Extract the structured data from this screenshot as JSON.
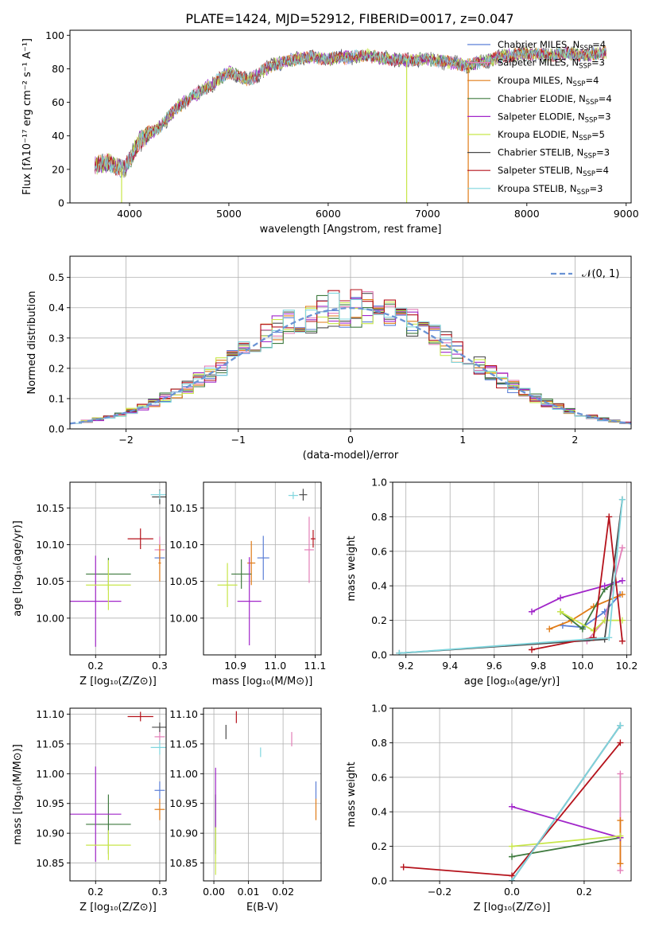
{
  "figure": {
    "title": "PLATE=1424, MJD=52912, FIBERID=0017, z=0.047"
  },
  "models": [
    {
      "name": "Chabrier MILES",
      "nssp": "4",
      "color": "#5b7fd6"
    },
    {
      "name": "Salpeter MILES",
      "nssp": "3",
      "color": "#e37fb8"
    },
    {
      "name": "Kroupa MILES",
      "nssp": "4",
      "color": "#e07b17"
    },
    {
      "name": "Chabrier ELODIE",
      "nssp": "4",
      "color": "#3f7a3f"
    },
    {
      "name": "Salpeter ELODIE",
      "nssp": "3",
      "color": "#a126c9"
    },
    {
      "name": "Kroupa ELODIE",
      "nssp": "5",
      "color": "#c8e64a"
    },
    {
      "name": "Chabrier STELIB",
      "nssp": "3",
      "color": "#4a4a4a"
    },
    {
      "name": "Salpeter STELIB",
      "nssp": "4",
      "color": "#b5121b"
    },
    {
      "name": "Kroupa STELIB",
      "nssp": "3",
      "color": "#7fd6de"
    }
  ],
  "chart_data": [
    {
      "id": "spectrum",
      "type": "line",
      "xlabel": "wavelength [Angstrom, rest frame]",
      "ylabel": "Flux [fλ10⁻¹⁷ erg cm⁻² s⁻¹ A⁻¹]",
      "xlim": [
        3400,
        9050
      ],
      "ylim": [
        0,
        103
      ],
      "xticks": [
        4000,
        5000,
        6000,
        7000,
        8000,
        9000
      ],
      "yticks": [
        0,
        20,
        40,
        60,
        80,
        100
      ],
      "grid": false,
      "legend": "right",
      "x": [
        3650,
        3800,
        3950,
        4100,
        4300,
        4500,
        4700,
        4860,
        5000,
        5200,
        5400,
        5600,
        5800,
        6000,
        6200,
        6400,
        6563,
        6800,
        7000,
        7200,
        7400,
        7600,
        7800,
        8000,
        8200,
        8400,
        8600,
        8800
      ],
      "y": [
        22,
        24,
        20,
        37,
        45,
        58,
        66,
        72,
        78,
        73,
        81,
        85,
        87,
        86,
        87,
        88,
        86,
        85,
        86,
        84,
        82,
        85,
        88,
        89,
        88,
        89,
        88,
        90
      ],
      "spikes": [
        {
          "x": 3920,
          "color": "#c8e64a"
        },
        {
          "x": 6790,
          "color": "#c8e64a"
        },
        {
          "x": 7410,
          "color": "#e07b17"
        }
      ]
    },
    {
      "id": "residuals",
      "type": "bar",
      "xlabel": "(data-model)/error",
      "ylabel": "Normed distribution",
      "xlim": [
        -2.5,
        2.5
      ],
      "ylim": [
        0,
        0.57
      ],
      "xticks": [
        -2,
        -1,
        0,
        1,
        2
      ],
      "yticks": [
        0.0,
        0.1,
        0.2,
        0.3,
        0.4,
        0.5
      ],
      "grid": true,
      "legend": "top-right",
      "legend_label": "𝒩(0, 1)",
      "gaussian_color": "#6a93d4"
    },
    {
      "id": "age-vs-z",
      "type": "scatter",
      "xlabel": "Z [log₁₀(Z/Z⊙)]",
      "ylabel": "age  [log₁₀(age/yr)]",
      "xlim": [
        0.16,
        0.31
      ],
      "ylim": [
        9.95,
        10.185
      ],
      "xticks": [
        0.2,
        0.3
      ],
      "yticks": [
        10.0,
        10.05,
        10.1,
        10.15
      ],
      "xticklabels": [
        "0.2",
        "0.3"
      ],
      "yticklabels": [
        "10.00",
        "10.05",
        "10.10",
        "10.15"
      ],
      "grid": true,
      "points": [
        {
          "m": 0,
          "x": 0.3,
          "y": 10.082,
          "xe": 0.008,
          "ye": 0.004
        },
        {
          "m": 1,
          "x": 0.3,
          "y": 10.093,
          "xe": 0.008,
          "ye": 0.018
        },
        {
          "m": 2,
          "x": 0.3,
          "y": 10.075,
          "xe": 0.002,
          "ye": 0.025
        },
        {
          "m": 3,
          "x": 0.22,
          "y": 10.06,
          "xe": 0.035,
          "ye": 0.022
        },
        {
          "m": 4,
          "x": 0.2,
          "y": 10.023,
          "xe": 0.04,
          "ye": 0.062
        },
        {
          "m": 5,
          "x": 0.22,
          "y": 10.045,
          "xe": 0.035,
          "ye": 0.034
        },
        {
          "m": 6,
          "x": 0.3,
          "y": 10.165,
          "xe": 0.012,
          "ye": 0.01
        },
        {
          "m": 7,
          "x": 0.27,
          "y": 10.108,
          "xe": 0.02,
          "ye": 0.014
        },
        {
          "m": 8,
          "x": 0.3,
          "y": 10.168,
          "xe": 0.014,
          "ye": 0.006
        }
      ]
    },
    {
      "id": "age-vs-mass",
      "type": "scatter",
      "xlabel": "mass [log₁₀(M/M⊙)]",
      "ylabel": "",
      "xlim": [
        10.82,
        11.115
      ],
      "ylim": [
        9.95,
        10.185
      ],
      "xticks": [
        10.9,
        11.0,
        11.1
      ],
      "yticks": [
        10.0,
        10.05,
        10.1,
        10.15
      ],
      "xticklabels": [
        "10.9",
        "11.0",
        "11.1"
      ],
      "yticklabels": [
        "10.00",
        "10.05",
        "10.10",
        "10.15"
      ],
      "grid": true,
      "points": [
        {
          "m": 0,
          "x": 10.97,
          "y": 10.082,
          "xe": 0.015,
          "ye": 0.03
        },
        {
          "m": 1,
          "x": 11.085,
          "y": 10.093,
          "xe": 0.012,
          "ye": 0.045
        },
        {
          "m": 2,
          "x": 10.94,
          "y": 10.075,
          "xe": 0.01,
          "ye": 0.03
        },
        {
          "m": 3,
          "x": 10.915,
          "y": 10.06,
          "xe": 0.025,
          "ye": 0.02
        },
        {
          "m": 4,
          "x": 10.935,
          "y": 10.023,
          "xe": 0.03,
          "ye": 0.06
        },
        {
          "m": 5,
          "x": 10.88,
          "y": 10.045,
          "xe": 0.025,
          "ye": 0.03
        },
        {
          "m": 6,
          "x": 11.07,
          "y": 10.168,
          "xe": 0.01,
          "ye": 0.008
        },
        {
          "m": 7,
          "x": 11.095,
          "y": 10.108,
          "xe": 0.006,
          "ye": 0.012
        },
        {
          "m": 8,
          "x": 11.045,
          "y": 10.167,
          "xe": 0.012,
          "ye": 0.005
        }
      ]
    },
    {
      "id": "massweight-vs-age",
      "type": "line",
      "xlabel": "age  [log₁₀(age/yr)]",
      "ylabel": "mass weight",
      "xlim": [
        9.14,
        10.22
      ],
      "ylim": [
        0,
        1
      ],
      "xticks": [
        9.2,
        9.4,
        9.6,
        9.8,
        10.0,
        10.2
      ],
      "yticks": [
        0,
        0.2,
        0.4,
        0.6,
        0.8,
        1.0
      ],
      "xticklabels": [
        "9.2",
        "9.4",
        "9.6",
        "9.8",
        "10.0",
        "10.2"
      ],
      "yticklabels": [
        "0.0",
        "0.2",
        "0.4",
        "0.6",
        "0.8",
        "1.0"
      ],
      "grid": true,
      "series": [
        {
          "m": 0,
          "x": [
            9.91,
            10.0,
            10.1,
            10.17
          ],
          "y": [
            0.17,
            0.16,
            0.25,
            0.35
          ]
        },
        {
          "m": 1,
          "x": [
            10.02,
            10.1,
            10.18
          ],
          "y": [
            0.08,
            0.2,
            0.62
          ]
        },
        {
          "m": 2,
          "x": [
            9.85,
            9.95,
            10.05,
            10.18
          ],
          "y": [
            0.15,
            0.2,
            0.28,
            0.35
          ]
        },
        {
          "m": 3,
          "x": [
            9.9,
            10.0,
            10.1,
            10.15
          ],
          "y": [
            0.25,
            0.15,
            0.38,
            0.42
          ]
        },
        {
          "m": 4,
          "x": [
            9.77,
            9.9,
            10.1,
            10.18
          ],
          "y": [
            0.25,
            0.33,
            0.4,
            0.43
          ]
        },
        {
          "m": 5,
          "x": [
            9.9,
            10.05,
            10.1,
            10.18
          ],
          "y": [
            0.25,
            0.14,
            0.2,
            0.2
          ]
        },
        {
          "m": 6,
          "x": [
            9.17,
            10.1,
            10.18
          ],
          "y": [
            0.01,
            0.09,
            0.9
          ]
        },
        {
          "m": 7,
          "x": [
            9.77,
            10.05,
            10.12,
            10.18
          ],
          "y": [
            0.03,
            0.1,
            0.8,
            0.08
          ]
        },
        {
          "m": 8,
          "x": [
            9.17,
            10.12,
            10.18
          ],
          "y": [
            0.01,
            0.1,
            0.9
          ]
        }
      ]
    },
    {
      "id": "mass-vs-z",
      "type": "scatter",
      "xlabel": "Z [log₁₀(Z/Z⊙)]",
      "ylabel": "mass [log₁₀(M/M⊙)]",
      "xlim": [
        0.16,
        0.31
      ],
      "ylim": [
        10.82,
        11.11
      ],
      "xticks": [
        0.2,
        0.3
      ],
      "yticks": [
        10.85,
        10.9,
        10.95,
        11.0,
        11.05,
        11.1
      ],
      "xticklabels": [
        "0.2",
        "0.3"
      ],
      "yticklabels": [
        "10.85",
        "10.90",
        "10.95",
        "11.00",
        "11.05",
        "11.10"
      ],
      "grid": true,
      "points": [
        {
          "m": 0,
          "x": 0.3,
          "y": 10.972,
          "xe": 0.008,
          "ye": 0.015
        },
        {
          "m": 1,
          "x": 0.3,
          "y": 11.062,
          "xe": 0.008,
          "ye": 0.012
        },
        {
          "m": 2,
          "x": 0.3,
          "y": 10.94,
          "xe": 0.008,
          "ye": 0.018
        },
        {
          "m": 3,
          "x": 0.22,
          "y": 10.915,
          "xe": 0.035,
          "ye": 0.05
        },
        {
          "m": 4,
          "x": 0.2,
          "y": 10.932,
          "xe": 0.04,
          "ye": 0.08
        },
        {
          "m": 5,
          "x": 0.22,
          "y": 10.88,
          "xe": 0.035,
          "ye": 0.025
        },
        {
          "m": 6,
          "x": 0.3,
          "y": 11.078,
          "xe": 0.012,
          "ye": 0.008
        },
        {
          "m": 7,
          "x": 0.27,
          "y": 11.096,
          "xe": 0.02,
          "ye": 0.008
        },
        {
          "m": 8,
          "x": 0.3,
          "y": 11.044,
          "xe": 0.014,
          "ye": 0.012
        }
      ]
    },
    {
      "id": "mass-vs-ebv",
      "type": "scatter",
      "xlabel": "E(B-V)",
      "ylabel": "",
      "xlim": [
        -0.003,
        0.031
      ],
      "ylim": [
        10.82,
        11.11
      ],
      "xticks": [
        0.0,
        0.01,
        0.02
      ],
      "yticks": [
        10.85,
        10.9,
        10.95,
        11.0,
        11.05,
        11.1
      ],
      "xticklabels": [
        "0.00",
        "0.01",
        "0.02"
      ],
      "yticklabels": [
        "10.85",
        "10.90",
        "10.95",
        "11.00",
        "11.05",
        "11.10"
      ],
      "grid": true,
      "points": [
        {
          "m": 0,
          "x": 0.0295,
          "y": 10.972,
          "xe": 0,
          "ye": 0.015
        },
        {
          "m": 1,
          "x": 0.0225,
          "y": 11.058,
          "xe": 0,
          "ye": 0.012
        },
        {
          "m": 2,
          "x": 0.0295,
          "y": 10.94,
          "xe": 0,
          "ye": 0.018
        },
        {
          "m": 3,
          "x": 0.0005,
          "y": 10.915,
          "xe": 0,
          "ye": 0.05
        },
        {
          "m": 4,
          "x": 0.0005,
          "y": 10.96,
          "xe": 0,
          "ye": 0.05
        },
        {
          "m": 5,
          "x": 0.0005,
          "y": 10.87,
          "xe": 0,
          "ye": 0.04
        },
        {
          "m": 6,
          "x": 0.0035,
          "y": 11.07,
          "xe": 0,
          "ye": 0.012
        },
        {
          "m": 7,
          "x": 0.0065,
          "y": 11.095,
          "xe": 0,
          "ye": 0.01
        },
        {
          "m": 8,
          "x": 0.0135,
          "y": 11.036,
          "xe": 0,
          "ye": 0.008
        }
      ]
    },
    {
      "id": "massweight-vs-z",
      "type": "line",
      "xlabel": "Z [log₁₀(Z/Z⊙)]",
      "ylabel": "mass weight",
      "xlim": [
        -0.33,
        0.33
      ],
      "ylim": [
        0,
        1
      ],
      "xticks": [
        -0.2,
        0.0,
        0.2
      ],
      "yticks": [
        0,
        0.2,
        0.4,
        0.6,
        0.8,
        1.0
      ],
      "xticklabels": [
        "−0.2",
        "0.0",
        "0.2"
      ],
      "yticklabels": [
        "0.0",
        "0.2",
        "0.4",
        "0.6",
        "0.8",
        "1.0"
      ],
      "grid": true,
      "series": [
        {
          "m": 0,
          "x": [
            0.0,
            0.3
          ],
          "y": [
            0.0,
            0.9
          ]
        },
        {
          "m": 1,
          "x": [
            0.3,
            0.3
          ],
          "y": [
            0.06,
            0.62
          ]
        },
        {
          "m": 2,
          "x": [
            0.3,
            0.3
          ],
          "y": [
            0.1,
            0.35
          ]
        },
        {
          "m": 3,
          "x": [
            0.0,
            0.3
          ],
          "y": [
            0.14,
            0.25
          ]
        },
        {
          "m": 4,
          "x": [
            0.0,
            0.3
          ],
          "y": [
            0.43,
            0.25
          ]
        },
        {
          "m": 5,
          "x": [
            0.0,
            0.3
          ],
          "y": [
            0.2,
            0.26
          ]
        },
        {
          "m": 6,
          "x": [
            0.0,
            0.3
          ],
          "y": [
            0.0,
            0.9
          ]
        },
        {
          "m": 7,
          "x": [
            -0.3,
            0.0,
            0.3
          ],
          "y": [
            0.08,
            0.03,
            0.8
          ]
        },
        {
          "m": 8,
          "x": [
            0.0,
            0.3
          ],
          "y": [
            0.0,
            0.9
          ]
        }
      ]
    }
  ]
}
